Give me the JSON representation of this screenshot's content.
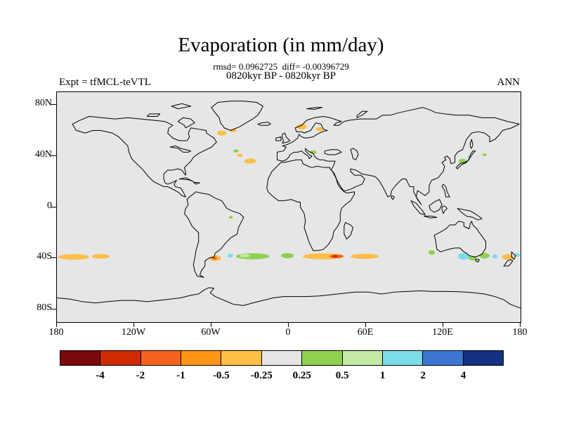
{
  "header": {
    "title": "Evaporation (in mm/day)",
    "stats_line": "rmsd= 0.0962725  diff= -0.00396729",
    "subtitle": "0820kyr BP - 0820kyr BP",
    "experiment_label": "Expt = tfMCL-teVTL",
    "season_label": "ANN"
  },
  "chart_data": {
    "type": "heatmap",
    "title": "Evaporation (in mm/day)",
    "units": "mm/day",
    "season": "ANN",
    "experiment": "tfMCL-teVTL",
    "comparison": "0820kyr BP - 0820kyr BP",
    "rmsd": 0.0962725,
    "diff": -0.00396729,
    "projection": "equirectangular",
    "lon_range": [
      -180,
      180
    ],
    "lat_range": [
      -90,
      90
    ],
    "background_color": "#e6e6e6",
    "axes": {
      "lat_ticks": [
        {
          "label": "80N",
          "value": 80
        },
        {
          "label": "40N",
          "value": 40
        },
        {
          "label": "0",
          "value": 0
        },
        {
          "label": "40S",
          "value": -40
        },
        {
          "label": "80S",
          "value": -80
        }
      ],
      "lon_ticks": [
        {
          "label": "180",
          "value": -180
        },
        {
          "label": "120W",
          "value": -120
        },
        {
          "label": "60W",
          "value": -60
        },
        {
          "label": "0",
          "value": 0
        },
        {
          "label": "60E",
          "value": 60
        },
        {
          "label": "120E",
          "value": 120
        },
        {
          "label": "180",
          "value": 180
        }
      ]
    },
    "colorbar": {
      "levels": [
        -4,
        -2,
        -1,
        -0.5,
        -0.25,
        0.25,
        0.5,
        1,
        2,
        4
      ],
      "labels": [
        "-4",
        "-2",
        "-1",
        "-0.5",
        "-0.25",
        "0.25",
        "0.5",
        "1",
        "2",
        "4"
      ],
      "colors": [
        "#7a0a0a",
        "#cf2a00",
        "#f4641e",
        "#ff9614",
        "#ffbe46",
        "#e6e6e6",
        "#8ed050",
        "#c3e9a4",
        "#7cdce8",
        "#3c78d2",
        "#143082"
      ]
    },
    "anomalies": [
      {
        "lon": -167,
        "lat": -39,
        "rlon": 12,
        "rlat": 2.2,
        "value": -0.4
      },
      {
        "lon": -146,
        "lat": -38.5,
        "rlon": 7,
        "rlat": 1.8,
        "value": -0.4
      },
      {
        "lon": -57,
        "lat": -40,
        "rlon": 4.5,
        "rlat": 2.2,
        "value": -0.4
      },
      {
        "lon": -57.5,
        "lat": -40,
        "rlon": 2,
        "rlat": 1.1,
        "value": -1.5
      },
      {
        "lon": -45.5,
        "lat": -38,
        "rlon": 2.2,
        "rlat": 1.5,
        "value": 1.5
      },
      {
        "lon": -28,
        "lat": -38.5,
        "rlon": 13,
        "rlat": 2.4,
        "value": 0.4
      },
      {
        "lon": -34,
        "lat": -38,
        "rlon": 4,
        "rlat": 1.3,
        "value": 0.7
      },
      {
        "lon": -1,
        "lat": -38,
        "rlon": 5,
        "rlat": 2,
        "value": 0.4
      },
      {
        "lon": 27,
        "lat": -38.5,
        "rlon": 16,
        "rlat": 2.4,
        "value": -0.4
      },
      {
        "lon": 37,
        "lat": -38.5,
        "rlon": 5.5,
        "rlat": 1.5,
        "value": -1.5
      },
      {
        "lon": 36,
        "lat": -38.5,
        "rlon": 2,
        "rlat": 0.9,
        "value": -2.5
      },
      {
        "lon": 59,
        "lat": -38.5,
        "rlon": 11,
        "rlat": 2,
        "value": -0.4
      },
      {
        "lon": 111,
        "lat": -35.5,
        "rlon": 2.5,
        "rlat": 1.8,
        "value": 0.4
      },
      {
        "lon": 136,
        "lat": -38.5,
        "rlon": 4.5,
        "rlat": 2.6,
        "value": 1.5
      },
      {
        "lon": 143,
        "lat": -40,
        "rlon": 3.5,
        "rlat": 1.6,
        "value": 0.4
      },
      {
        "lon": 152,
        "lat": -38,
        "rlon": 4,
        "rlat": 2.2,
        "value": 0.4
      },
      {
        "lon": 160,
        "lat": -38.5,
        "rlon": 2,
        "rlat": 1.6,
        "value": 1.5
      },
      {
        "lon": 170,
        "lat": -39,
        "rlon": 4.5,
        "rlat": 2.2,
        "value": -0.4
      },
      {
        "lon": 177.5,
        "lat": -37.5,
        "rlon": 2,
        "rlat": 1.5,
        "value": 1.5
      },
      {
        "lon": -52,
        "lat": 58,
        "rlon": 3.5,
        "rlat": 2,
        "value": -0.4
      },
      {
        "lon": -43,
        "lat": 60,
        "rlon": 2.5,
        "rlat": 1.5,
        "value": -0.4
      },
      {
        "lon": 10,
        "lat": 63,
        "rlon": 4,
        "rlat": 2.2,
        "value": -0.4
      },
      {
        "lon": 24,
        "lat": 61,
        "rlon": 3,
        "rlat": 1.6,
        "value": -0.4
      },
      {
        "lon": -30,
        "lat": 36,
        "rlon": 4.5,
        "rlat": 2,
        "value": -0.4
      },
      {
        "lon": -38,
        "lat": 40.5,
        "rlon": 2.2,
        "rlat": 1.3,
        "value": -0.4
      },
      {
        "lon": -41,
        "lat": 44,
        "rlon": 2,
        "rlat": 1.2,
        "value": 0.4
      },
      {
        "lon": 19,
        "lat": 43,
        "rlon": 2.8,
        "rlat": 1.4,
        "value": 0.4
      },
      {
        "lon": 135,
        "lat": 36,
        "rlon": 3,
        "rlat": 1.8,
        "value": 0.4
      },
      {
        "lon": 140,
        "lat": 39,
        "rlon": 1.4,
        "rlat": 1,
        "value": 1.5
      },
      {
        "lon": 152,
        "lat": 41,
        "rlon": 1.6,
        "rlat": 1.1,
        "value": 0.4
      },
      {
        "lon": -45,
        "lat": -8,
        "rlon": 1.6,
        "rlat": 1,
        "value": 0.4
      }
    ]
  }
}
